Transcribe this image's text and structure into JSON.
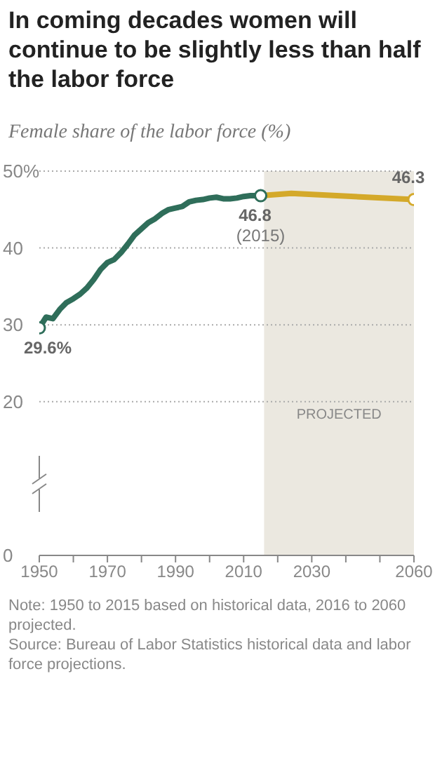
{
  "chart_data": {
    "type": "line",
    "title": "In coming decades women will continue to be slightly less than half the labor force",
    "subtitle": "Female share of the labor force (%)",
    "series": [
      {
        "x": [
          1950,
          1952,
          1954,
          1956,
          1958,
          1960,
          1962,
          1964,
          1966,
          1968,
          1970,
          1972,
          1974,
          1976,
          1978,
          1980,
          1982,
          1984,
          1986,
          1988,
          1990,
          1992,
          1994,
          1996,
          1998,
          2000,
          2002,
          2004,
          2006,
          2008,
          2010,
          2012,
          2015
        ],
        "values": [
          29.6,
          31.0,
          30.8,
          32.0,
          32.9,
          33.4,
          34.0,
          34.8,
          35.9,
          37.2,
          38.1,
          38.5,
          39.4,
          40.5,
          41.7,
          42.5,
          43.3,
          43.8,
          44.5,
          45.0,
          45.2,
          45.4,
          46.0,
          46.2,
          46.3,
          46.5,
          46.6,
          46.4,
          46.4,
          46.5,
          46.7,
          46.8,
          46.8
        ],
        "color": "#2f6e5a",
        "value_labels": [
          "29.6%",
          null,
          null,
          null,
          null,
          null,
          null,
          null,
          null,
          null,
          null,
          null,
          null,
          null,
          null,
          null,
          null,
          null,
          null,
          null,
          null,
          null,
          null,
          null,
          null,
          null,
          null,
          null,
          null,
          null,
          null,
          null,
          "46.8"
        ]
      },
      {
        "x": [
          2015,
          2024,
          2060
        ],
        "values": [
          46.8,
          47.1,
          46.3
        ],
        "color": "#d4a92a",
        "value_labels": [
          null,
          null,
          "46.3"
        ]
      }
    ],
    "xlim": [
      1950,
      2060
    ],
    "xticks": [
      1950,
      {
        "value": 1960,
        "label": null
      },
      1970,
      {
        "value": 1980,
        "label": null
      },
      1990,
      {
        "value": 2000,
        "label": null
      },
      2010,
      {
        "value": 2020,
        "label": null
      },
      2030,
      {
        "value": 2040,
        "label": null
      },
      {
        "value": 2050,
        "label": null
      },
      2060
    ],
    "ylim": [
      0,
      50
    ],
    "yticks": [
      0,
      20,
      30,
      40,
      {
        "value": 50,
        "label": "50%"
      }
    ],
    "grid": "y",
    "line_style": "solid",
    "marker": "none",
    "legend": false,
    "bands": [
      {
        "axis": "x",
        "from": 2016,
        "to": 2060,
        "label": "PROJECTED",
        "color": "#ebe8e0"
      }
    ],
    "annotations": [
      {
        "text": "(2015)",
        "x": 2015,
        "y": 46.8
      },
      "Note: 1950 to 2015 based on historical data, 2016 to 2060 projected.",
      "Source: Bureau of Labor Statistics historical data and labor force projections."
    ]
  }
}
